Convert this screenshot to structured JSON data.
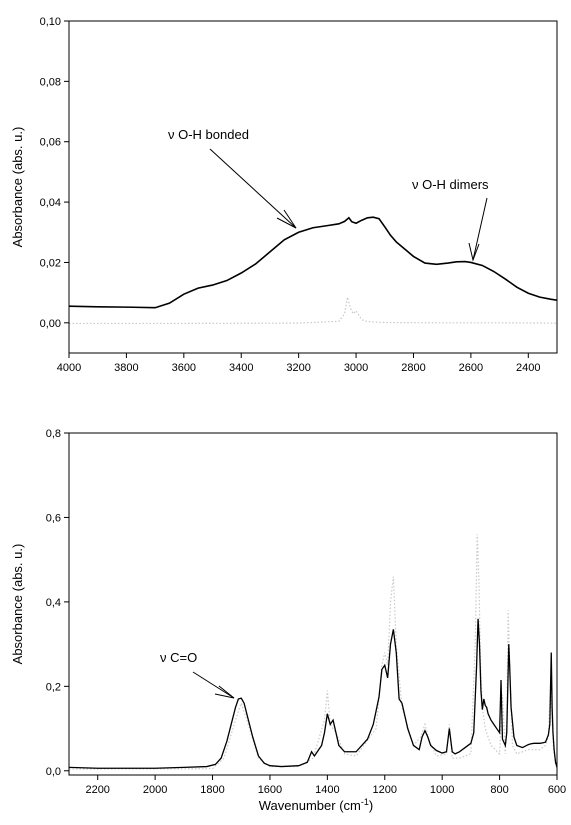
{
  "chart_data": [
    {
      "type": "line",
      "xlabel": "",
      "ylabel": "Absorbance (abs. u.)",
      "xlim": [
        4000,
        2300
      ],
      "ylim": [
        -0.01,
        0.1
      ],
      "x_reversed": true,
      "xticks": [
        4000,
        3800,
        3600,
        3400,
        3200,
        3000,
        2800,
        2600,
        2400
      ],
      "xtick_labels": [
        "4000",
        "3800",
        "3600",
        "3400",
        "3200",
        "3000",
        "2800",
        "2600",
        "2400"
      ],
      "yticks": [
        0.0,
        0.02,
        0.04,
        0.06,
        0.08,
        0.1
      ],
      "ytick_labels": [
        "0,00",
        "0,02",
        "0,04",
        "0,06",
        "0,08",
        "0,10"
      ],
      "series": [
        {
          "style": "solid",
          "color": "#000000",
          "x": [
            4000,
            3900,
            3800,
            3700,
            3650,
            3600,
            3550,
            3500,
            3450,
            3400,
            3350,
            3300,
            3250,
            3200,
            3150,
            3100,
            3060,
            3040,
            3025,
            3015,
            3000,
            2980,
            2960,
            2940,
            2920,
            2900,
            2880,
            2860,
            2840,
            2800,
            2760,
            2720,
            2680,
            2650,
            2620,
            2600,
            2560,
            2520,
            2480,
            2440,
            2400,
            2360,
            2320,
            2300
          ],
          "y": [
            0.0055,
            0.0053,
            0.0052,
            0.005,
            0.0065,
            0.0095,
            0.0115,
            0.0125,
            0.014,
            0.0165,
            0.0195,
            0.0235,
            0.0275,
            0.03,
            0.0315,
            0.0322,
            0.0328,
            0.0336,
            0.0348,
            0.0335,
            0.033,
            0.034,
            0.0348,
            0.035,
            0.0345,
            0.0318,
            0.029,
            0.0268,
            0.0252,
            0.022,
            0.0198,
            0.0194,
            0.0198,
            0.0202,
            0.0203,
            0.02,
            0.019,
            0.017,
            0.0145,
            0.0118,
            0.0098,
            0.0085,
            0.0078,
            0.0075
          ]
        },
        {
          "style": "dotted",
          "color": "#c8c8c8",
          "x": [
            4000,
            3600,
            3200,
            3060,
            3040,
            3030,
            3020,
            3010,
            3000,
            2990,
            2980,
            2960,
            2900,
            2700,
            2500,
            2300
          ],
          "y": [
            -0.0002,
            -0.0002,
            -0.0001,
            0.0005,
            0.003,
            0.0085,
            0.005,
            0.003,
            0.004,
            0.0025,
            0.001,
            0.0004,
            0.0001,
            0.0,
            0.0,
            -0.0001
          ]
        }
      ],
      "annotations": [
        {
          "text": "ν O-H bonded",
          "x": 3200,
          "y": 0.03
        },
        {
          "text": "ν O-H dimers",
          "x": 2600,
          "y": 0.02
        }
      ]
    },
    {
      "type": "line",
      "xlabel": "Wavenumber (cm-1)",
      "ylabel": "Absorbance (abs. u.)",
      "xlim": [
        2300,
        600
      ],
      "ylim": [
        -0.01,
        0.8
      ],
      "x_reversed": true,
      "xticks": [
        2200,
        2000,
        1800,
        1600,
        1400,
        1200,
        1000,
        800,
        600
      ],
      "xtick_labels": [
        "2200",
        "2000",
        "1800",
        "1600",
        "1400",
        "1200",
        "1000",
        "800",
        "600"
      ],
      "yticks": [
        0.0,
        0.2,
        0.4,
        0.6,
        0.8
      ],
      "ytick_labels": [
        "0,0",
        "0,2",
        "0,4",
        "0,6",
        "0,8"
      ],
      "series": [
        {
          "style": "solid",
          "color": "#000000",
          "x": [
            2300,
            2200,
            2000,
            1900,
            1820,
            1790,
            1770,
            1750,
            1735,
            1720,
            1710,
            1700,
            1690,
            1675,
            1660,
            1640,
            1620,
            1600,
            1560,
            1500,
            1470,
            1455,
            1445,
            1430,
            1420,
            1410,
            1400,
            1390,
            1380,
            1370,
            1360,
            1340,
            1300,
            1280,
            1260,
            1240,
            1220,
            1210,
            1200,
            1190,
            1180,
            1170,
            1160,
            1150,
            1140,
            1120,
            1100,
            1080,
            1070,
            1060,
            1050,
            1040,
            1020,
            1000,
            985,
            975,
            965,
            955,
            940,
            920,
            900,
            890,
            880,
            875,
            870,
            865,
            860,
            855,
            850,
            845,
            840,
            830,
            820,
            810,
            800,
            795,
            790,
            780,
            775,
            770,
            768,
            765,
            760,
            750,
            740,
            720,
            700,
            690,
            680,
            670,
            660,
            650,
            640,
            630,
            625,
            620,
            617,
            614,
            610,
            605,
            600
          ],
          "y": [
            0.008,
            0.006,
            0.006,
            0.008,
            0.01,
            0.015,
            0.03,
            0.07,
            0.11,
            0.15,
            0.17,
            0.172,
            0.16,
            0.12,
            0.08,
            0.035,
            0.018,
            0.012,
            0.01,
            0.012,
            0.02,
            0.045,
            0.035,
            0.05,
            0.06,
            0.09,
            0.135,
            0.11,
            0.12,
            0.09,
            0.06,
            0.045,
            0.045,
            0.06,
            0.075,
            0.11,
            0.175,
            0.24,
            0.25,
            0.22,
            0.3,
            0.335,
            0.28,
            0.17,
            0.16,
            0.1,
            0.06,
            0.05,
            0.08,
            0.095,
            0.08,
            0.06,
            0.048,
            0.042,
            0.045,
            0.1,
            0.045,
            0.04,
            0.045,
            0.055,
            0.065,
            0.09,
            0.25,
            0.36,
            0.3,
            0.19,
            0.145,
            0.17,
            0.155,
            0.15,
            0.135,
            0.12,
            0.11,
            0.1,
            0.09,
            0.215,
            0.075,
            0.06,
            0.09,
            0.24,
            0.3,
            0.25,
            0.15,
            0.08,
            0.06,
            0.055,
            0.062,
            0.064,
            0.065,
            0.065,
            0.065,
            0.066,
            0.068,
            0.085,
            0.11,
            0.28,
            0.15,
            0.09,
            0.05,
            0.02,
            0.008
          ]
        },
        {
          "style": "dotted",
          "color": "#c8c8c8",
          "x": [
            2300,
            1800,
            1760,
            1720,
            1700,
            1680,
            1640,
            1600,
            1500,
            1450,
            1410,
            1400,
            1390,
            1370,
            1340,
            1300,
            1230,
            1210,
            1200,
            1190,
            1180,
            1170,
            1160,
            1140,
            1100,
            1075,
            1060,
            1045,
            1020,
            985,
            975,
            965,
            940,
            900,
            885,
            878,
            872,
            866,
            860,
            850,
            830,
            800,
            790,
            780,
            775,
            770,
            765,
            755,
            740,
            700,
            660,
            640,
            630,
            622,
            618,
            612,
            605,
            600
          ],
          "y": [
            0.004,
            0.005,
            0.03,
            0.12,
            0.16,
            0.12,
            0.03,
            0.01,
            0.01,
            0.03,
            0.12,
            0.19,
            0.11,
            0.09,
            0.04,
            0.035,
            0.1,
            0.25,
            0.28,
            0.25,
            0.4,
            0.46,
            0.3,
            0.15,
            0.06,
            0.08,
            0.11,
            0.07,
            0.035,
            0.04,
            0.11,
            0.03,
            0.03,
            0.04,
            0.3,
            0.56,
            0.45,
            0.25,
            0.15,
            0.1,
            0.06,
            0.04,
            0.18,
            0.04,
            0.12,
            0.38,
            0.25,
            0.06,
            0.04,
            0.05,
            0.05,
            0.06,
            0.08,
            0.22,
            0.14,
            0.05,
            0.02,
            0.006
          ]
        }
      ],
      "annotations": [
        {
          "text": "ν C=O",
          "x": 1720,
          "y": 0.17
        }
      ]
    }
  ]
}
